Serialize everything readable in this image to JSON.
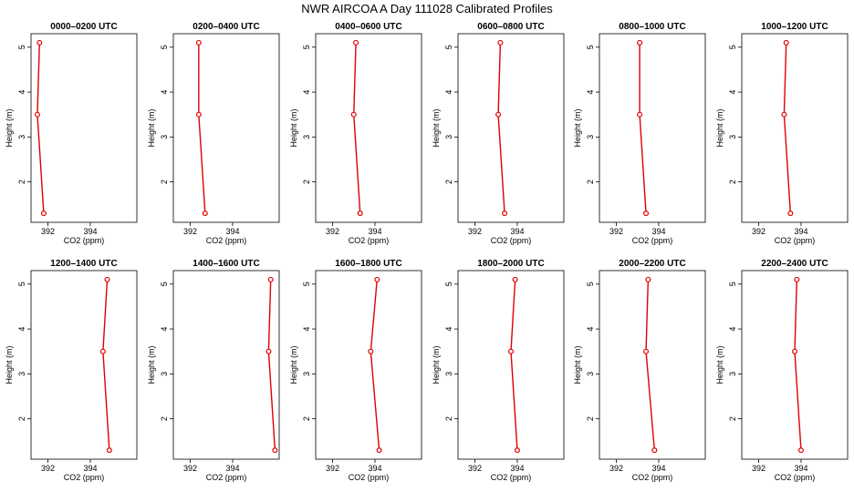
{
  "title": "NWR AIRCOA A  Day 111028  Calibrated Profiles",
  "colors": {
    "line": "#e00000",
    "marker": "#e00000",
    "axis": "#000000"
  },
  "chart_data": {
    "type": "line",
    "xlabel": "CO2 (ppm)",
    "ylabel": "Height (m)",
    "xlim": [
      391.2,
      396.2
    ],
    "ylim": [
      1.1,
      5.3
    ],
    "x_ticks": [
      392,
      394
    ],
    "y_ticks": [
      2,
      3,
      4,
      5
    ],
    "x_tick_labels": [
      "392",
      "394"
    ],
    "y_tick_labels": [
      "2",
      "3",
      "4",
      "5"
    ],
    "heights": [
      1.3,
      3.5,
      5.1
    ],
    "panels": [
      {
        "title": "0000–0200 UTC",
        "co2": [
          391.8,
          391.5,
          391.6
        ]
      },
      {
        "title": "0200–0400 UTC",
        "co2": [
          392.7,
          392.4,
          392.4
        ]
      },
      {
        "title": "0400–0600 UTC",
        "co2": [
          393.3,
          393.0,
          393.1
        ]
      },
      {
        "title": "0600–0800 UTC",
        "co2": [
          393.4,
          393.1,
          393.2
        ]
      },
      {
        "title": "0800–1000 UTC",
        "co2": [
          393.4,
          393.1,
          393.1
        ]
      },
      {
        "title": "1000–1200 UTC",
        "co2": [
          393.5,
          393.2,
          393.3
        ]
      },
      {
        "title": "1200–1400 UTC",
        "co2": [
          394.9,
          394.6,
          394.8
        ]
      },
      {
        "title": "1400–1600 UTC",
        "co2": [
          396.0,
          395.7,
          395.8
        ]
      },
      {
        "title": "1600–1800 UTC",
        "co2": [
          394.2,
          393.8,
          394.1
        ]
      },
      {
        "title": "1800–2000 UTC",
        "co2": [
          394.0,
          393.7,
          393.9
        ]
      },
      {
        "title": "2000–2200 UTC",
        "co2": [
          393.8,
          393.4,
          393.5
        ]
      },
      {
        "title": "2200–2400 UTC",
        "co2": [
          394.0,
          393.7,
          393.8
        ]
      }
    ]
  }
}
